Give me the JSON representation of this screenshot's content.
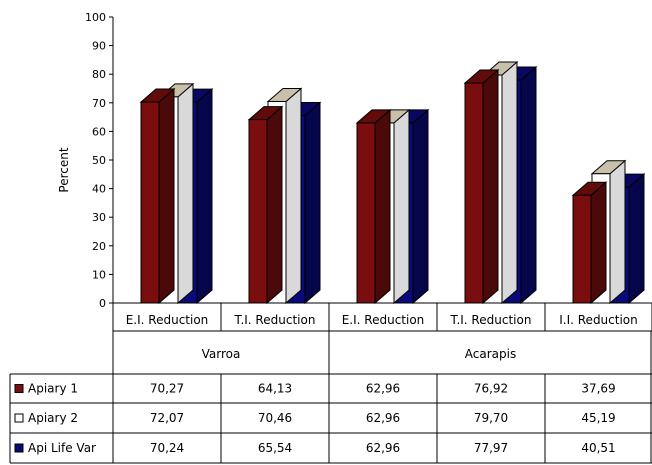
{
  "chart_data": {
    "type": "bar",
    "ylabel": "Percent",
    "ylim": [
      0,
      100
    ],
    "yticks": [
      0,
      10,
      20,
      30,
      40,
      50,
      60,
      70,
      80,
      90,
      100
    ],
    "three_d": true,
    "groups": [
      {
        "label": "Varroa",
        "categories": [
          "E.I. Reduction",
          "T.I. Reduction"
        ]
      },
      {
        "label": "Acarapis",
        "categories": [
          "E.I. Reduction",
          "T.I. Reduction",
          "I.I. Reduction"
        ]
      }
    ],
    "categories": [
      "E.I. Reduction",
      "T.I. Reduction",
      "E.I. Reduction",
      "T.I. Reduction",
      "I.I. Reduction"
    ],
    "series": [
      {
        "name": "Apiary 1",
        "color": "#7a0e0e",
        "values": [
          70.27,
          64.13,
          62.96,
          76.92,
          37.69
        ],
        "labels": [
          "70,27",
          "64,13",
          "62,96",
          "76,92",
          "37,69"
        ]
      },
      {
        "name": "Apiary 2",
        "color": "#ffffff",
        "values": [
          72.07,
          70.46,
          62.96,
          79.7,
          45.19
        ],
        "labels": [
          "72,07",
          "70,46",
          "62,96",
          "79,70",
          "45,19"
        ]
      },
      {
        "name": "Api Life Var",
        "color": "#0a0a7a",
        "values": [
          70.24,
          65.54,
          62.96,
          77.97,
          40.51
        ],
        "labels": [
          "70,24",
          "65,54",
          "62,96",
          "77,97",
          "40,51"
        ]
      }
    ],
    "legend": "table-left"
  }
}
